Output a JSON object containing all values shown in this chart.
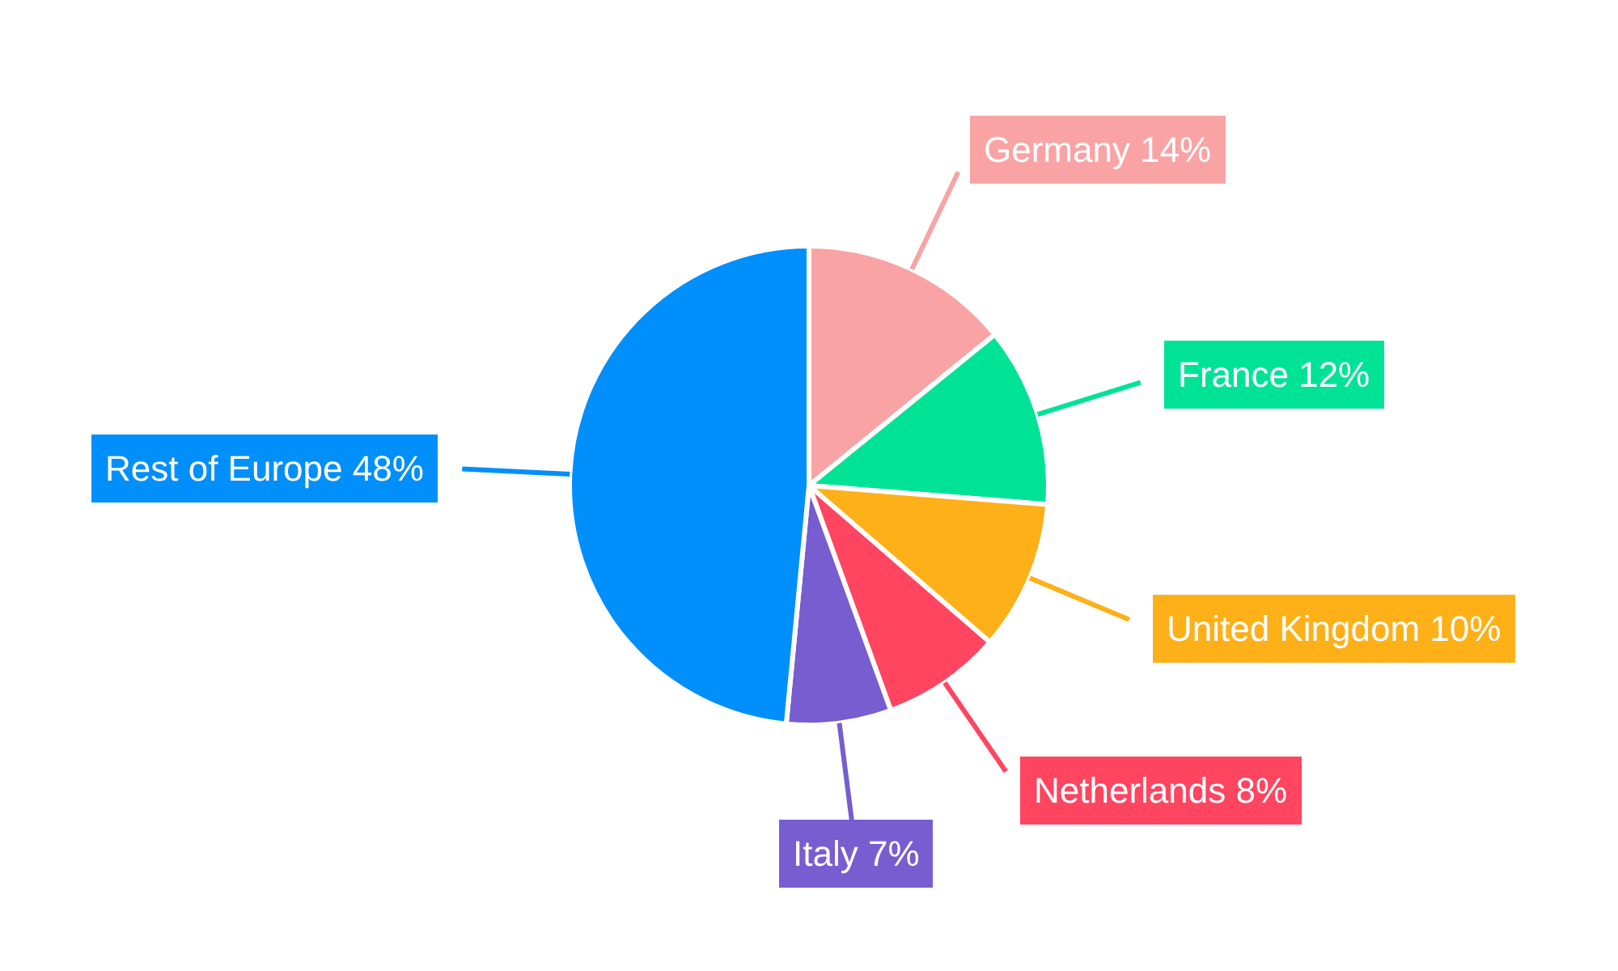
{
  "chart_data": {
    "type": "pie",
    "categories": [
      "Germany",
      "France",
      "United Kingdom",
      "Netherlands",
      "Italy",
      "Rest of Europe"
    ],
    "values": [
      14,
      12,
      10,
      8,
      7,
      48
    ],
    "colors": [
      "#f9a3a4",
      "#00e396",
      "#feb019",
      "#ff4560",
      "#775dd0",
      "#008ffb"
    ],
    "value_labels": [
      "14%",
      "12%",
      "10%",
      "8%",
      "7%",
      "48%"
    ],
    "legend": false
  }
}
